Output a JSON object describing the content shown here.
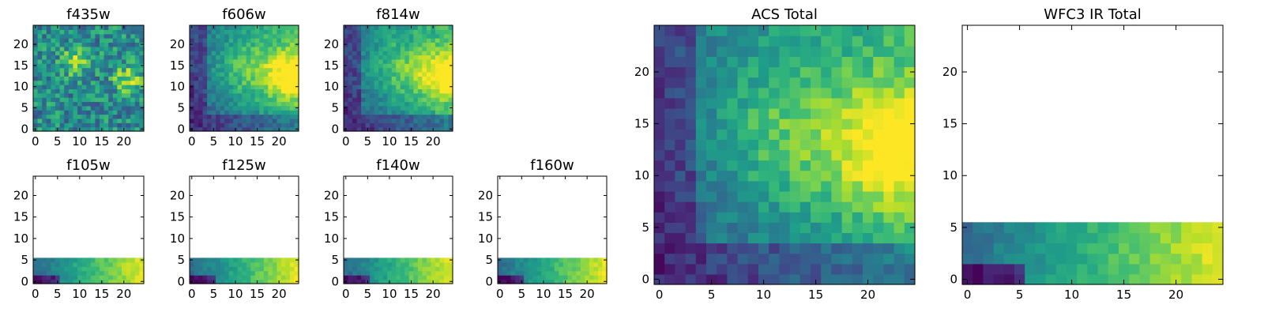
{
  "colormap": "viridis",
  "colormap_stops": [
    "#440154",
    "#482878",
    "#3e4a89",
    "#31688e",
    "#26828e",
    "#1f9e89",
    "#35b779",
    "#6ece58",
    "#b5de2b",
    "#fde725"
  ],
  "chart_data": [
    {
      "type": "heatmap",
      "title": "f435w",
      "xticks": [
        "0",
        "5",
        "10",
        "15",
        "20"
      ],
      "yticks": [
        "0",
        "5",
        "10",
        "15",
        "20"
      ],
      "xlim": [
        -0.5,
        24.5
      ],
      "ylim": [
        -0.5,
        24.5
      ],
      "rows": 25,
      "cols": 25,
      "coverage_rows": 25,
      "pattern": "noisy",
      "row_values": [
        0.45,
        0.6
      ]
    },
    {
      "type": "heatmap",
      "title": "f606w",
      "xticks": [
        "0",
        "5",
        "10",
        "15",
        "20"
      ],
      "yticks": [
        "0",
        "5",
        "10",
        "15",
        "20"
      ],
      "xlim": [
        -0.5,
        24.5
      ],
      "ylim": [
        -0.5,
        24.5
      ],
      "rows": 25,
      "cols": 25,
      "coverage_rows": 25,
      "pattern": "galaxy",
      "row_values": [
        0.5,
        0.95
      ]
    },
    {
      "type": "heatmap",
      "title": "f814w",
      "xticks": [
        "0",
        "5",
        "10",
        "15",
        "20"
      ],
      "yticks": [
        "0",
        "5",
        "10",
        "15",
        "20"
      ],
      "xlim": [
        -0.5,
        24.5
      ],
      "ylim": [
        -0.5,
        24.5
      ],
      "rows": 25,
      "cols": 25,
      "coverage_rows": 25,
      "pattern": "galaxy",
      "row_values": [
        0.5,
        0.95
      ]
    },
    {
      "type": "heatmap",
      "title": "f105w",
      "xticks": [
        "0",
        "5",
        "10",
        "15",
        "20"
      ],
      "yticks": [
        "0",
        "5",
        "10",
        "15",
        "20"
      ],
      "xlim": [
        -0.5,
        24.5
      ],
      "ylim": [
        -0.5,
        24.5
      ],
      "rows": 25,
      "cols": 25,
      "coverage_rows": 6,
      "pattern": "strip",
      "row_values": [
        0.2,
        0.95
      ]
    },
    {
      "type": "heatmap",
      "title": "f125w",
      "xticks": [
        "0",
        "5",
        "10",
        "15",
        "20"
      ],
      "yticks": [
        "0",
        "5",
        "10",
        "15",
        "20"
      ],
      "xlim": [
        -0.5,
        24.5
      ],
      "ylim": [
        -0.5,
        24.5
      ],
      "rows": 25,
      "cols": 25,
      "coverage_rows": 6,
      "pattern": "strip",
      "row_values": [
        0.2,
        0.95
      ]
    },
    {
      "type": "heatmap",
      "title": "f140w",
      "xticks": [
        "0",
        "5",
        "10",
        "15",
        "20"
      ],
      "yticks": [
        "0",
        "5",
        "10",
        "15",
        "20"
      ],
      "xlim": [
        -0.5,
        24.5
      ],
      "ylim": [
        -0.5,
        24.5
      ],
      "rows": 25,
      "cols": 25,
      "coverage_rows": 6,
      "pattern": "strip",
      "row_values": [
        0.2,
        0.95
      ]
    },
    {
      "type": "heatmap",
      "title": "f160w",
      "xticks": [
        "0",
        "5",
        "10",
        "15",
        "20"
      ],
      "yticks": [
        "0",
        "5",
        "10",
        "15",
        "20"
      ],
      "xlim": [
        -0.5,
        24.5
      ],
      "ylim": [
        -0.5,
        24.5
      ],
      "rows": 25,
      "cols": 25,
      "coverage_rows": 6,
      "pattern": "strip",
      "row_values": [
        0.2,
        0.95
      ]
    },
    {
      "type": "heatmap",
      "title": "ACS Total",
      "xticks": [
        "0",
        "5",
        "10",
        "15",
        "20"
      ],
      "yticks": [
        "0",
        "5",
        "10",
        "15",
        "20"
      ],
      "xlim": [
        -0.5,
        24.5
      ],
      "ylim": [
        -0.5,
        24.5
      ],
      "rows": 25,
      "cols": 25,
      "coverage_rows": 25,
      "pattern": "galaxy",
      "row_values": [
        0.3,
        0.95
      ]
    },
    {
      "type": "heatmap",
      "title": "WFC3 IR Total",
      "xticks": [
        "0",
        "5",
        "10",
        "15",
        "20"
      ],
      "yticks": [
        "0",
        "5",
        "10",
        "15",
        "20"
      ],
      "xlim": [
        -0.5,
        24.5
      ],
      "ylim": [
        -0.5,
        24.5
      ],
      "rows": 25,
      "cols": 25,
      "coverage_rows": 6,
      "pattern": "strip",
      "row_values": [
        0.2,
        0.95
      ]
    }
  ]
}
